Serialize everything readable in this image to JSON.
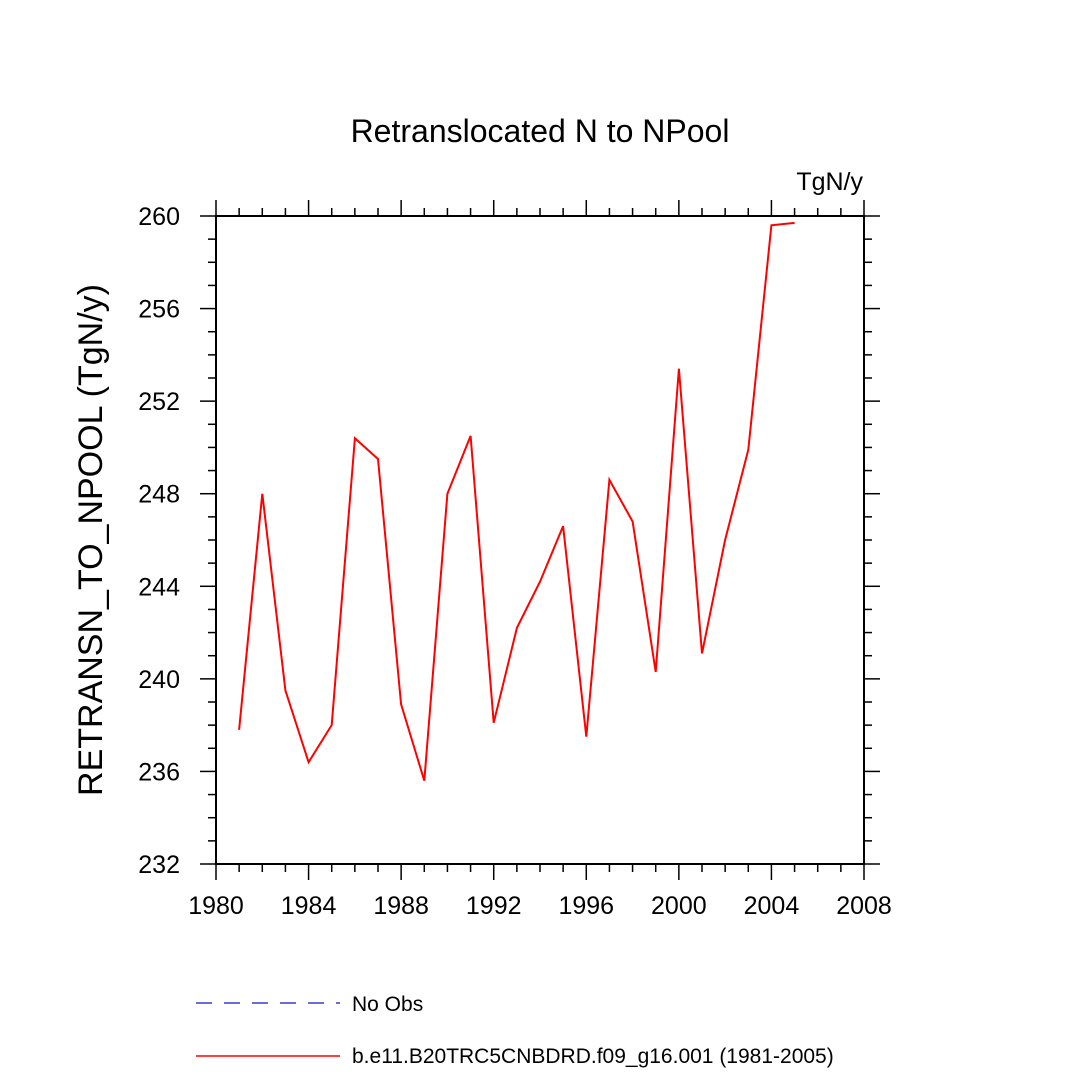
{
  "chart_data": {
    "type": "line",
    "title": "Retranslocated N to NPool",
    "units_label": "TgN/y",
    "xlabel": "",
    "ylabel": "RETRANSN_TO_NPOOL  (TgN/y)",
    "xlim": [
      1980,
      2008
    ],
    "ylim": [
      232,
      260
    ],
    "x_ticks": [
      1980,
      1984,
      1988,
      1992,
      1996,
      2000,
      2004,
      2008
    ],
    "y_ticks": [
      232,
      236,
      240,
      244,
      248,
      252,
      256,
      260
    ],
    "series": [
      {
        "name": "b.e11.B20TRC5CNBDRD.f09_g16.001 (1981-2005)",
        "color": "#ff0000",
        "dash": "solid",
        "x": [
          1981,
          1982,
          1983,
          1984,
          1985,
          1986,
          1987,
          1988,
          1989,
          1990,
          1991,
          1992,
          1993,
          1994,
          1995,
          1996,
          1997,
          1998,
          1999,
          2000,
          2001,
          2002,
          2003,
          2004,
          2005
        ],
        "y": [
          237.8,
          248.0,
          239.5,
          236.4,
          238.0,
          250.4,
          249.5,
          238.9,
          235.6,
          248.0,
          250.5,
          238.1,
          242.2,
          244.2,
          246.6,
          237.5,
          248.6,
          246.8,
          240.3,
          253.4,
          241.1,
          246.0,
          249.9,
          259.6,
          259.7
        ]
      },
      {
        "name": "No Obs",
        "color": "#3a3ad6",
        "dash": "dashed",
        "x": [],
        "y": []
      }
    ]
  }
}
